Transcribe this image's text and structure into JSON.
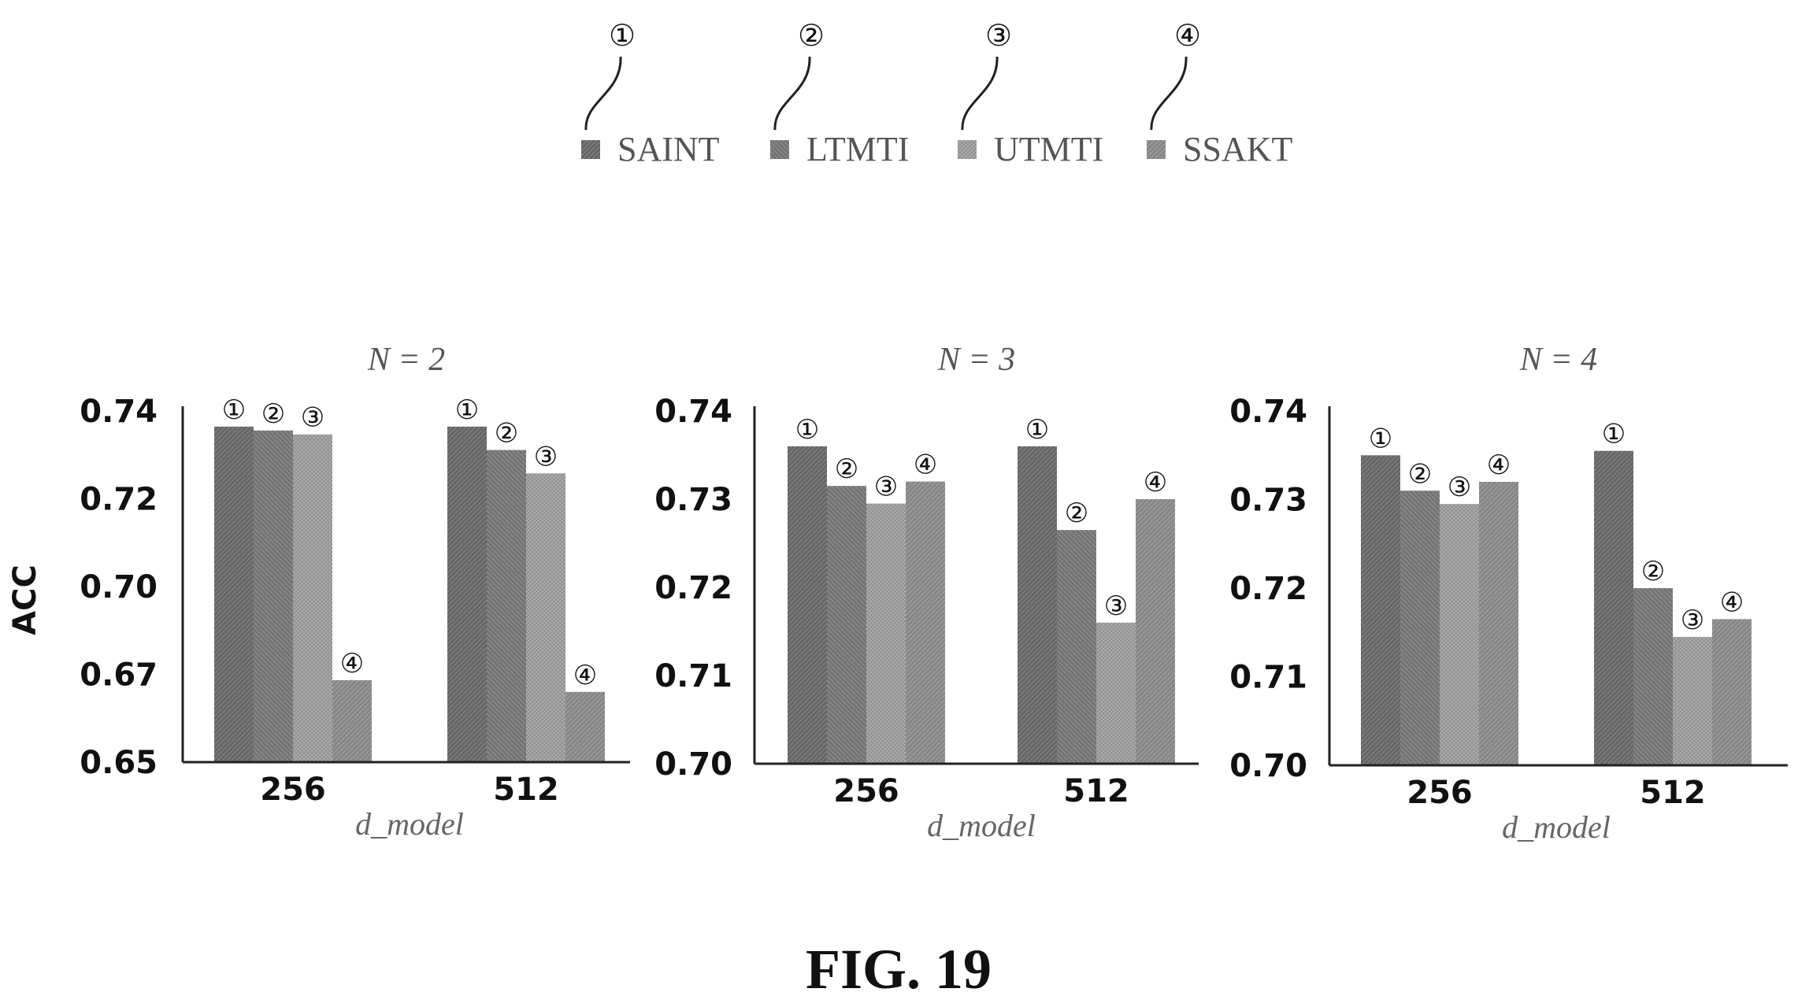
{
  "legend": {
    "items": [
      {
        "marker": "①",
        "label": "SAINT",
        "color": "#6a6a6a"
      },
      {
        "marker": "②",
        "label": "LTMTI",
        "color": "#777777"
      },
      {
        "marker": "③",
        "label": "UTMTI",
        "color": "#9a9a9a"
      },
      {
        "marker": "④",
        "label": "SSAKT",
        "color": "#858585"
      }
    ]
  },
  "ylabel": "ACC",
  "figure_caption": "FIG. 19",
  "chart_data": [
    {
      "type": "bar",
      "title": "N = 2",
      "xlabel": "d_model",
      "categories": [
        "256",
        "512"
      ],
      "ylim": [
        0.65,
        0.74
      ],
      "yticks": [
        "0.74",
        "0.72",
        "0.70",
        "0.67",
        "0.65"
      ],
      "series": [
        {
          "name": "SAINT",
          "marker": "①",
          "values": [
            0.736,
            0.736
          ]
        },
        {
          "name": "LTMTI",
          "marker": "②",
          "values": [
            0.735,
            0.73
          ]
        },
        {
          "name": "UTMTI",
          "marker": "③",
          "values": [
            0.734,
            0.724
          ]
        },
        {
          "name": "SSAKT",
          "marker": "④",
          "values": [
            0.671,
            0.668
          ]
        }
      ]
    },
    {
      "type": "bar",
      "title": "N = 3",
      "xlabel": "d_model",
      "categories": [
        "256",
        "512"
      ],
      "ylim": [
        0.7,
        0.74
      ],
      "yticks": [
        "0.74",
        "0.73",
        "0.72",
        "0.71",
        "0.70"
      ],
      "series": [
        {
          "name": "SAINT",
          "marker": "①",
          "values": [
            0.736,
            0.736
          ]
        },
        {
          "name": "LTMTI",
          "marker": "②",
          "values": [
            0.7315,
            0.7265
          ]
        },
        {
          "name": "UTMTI",
          "marker": "③",
          "values": [
            0.7295,
            0.716
          ]
        },
        {
          "name": "SSAKT",
          "marker": "④",
          "values": [
            0.732,
            0.73
          ]
        }
      ]
    },
    {
      "type": "bar",
      "title": "N = 4",
      "xlabel": "d_model",
      "categories": [
        "256",
        "512"
      ],
      "ylim": [
        0.7,
        0.74
      ],
      "yticks": [
        "0.74",
        "0.73",
        "0.72",
        "0.71",
        "0.70"
      ],
      "series": [
        {
          "name": "SAINT",
          "marker": "①",
          "values": [
            0.735,
            0.7355
          ]
        },
        {
          "name": "LTMTI",
          "marker": "②",
          "values": [
            0.731,
            0.72
          ]
        },
        {
          "name": "UTMTI",
          "marker": "③",
          "values": [
            0.7295,
            0.7145
          ]
        },
        {
          "name": "SSAKT",
          "marker": "④",
          "values": [
            0.732,
            0.7165
          ]
        }
      ]
    }
  ]
}
